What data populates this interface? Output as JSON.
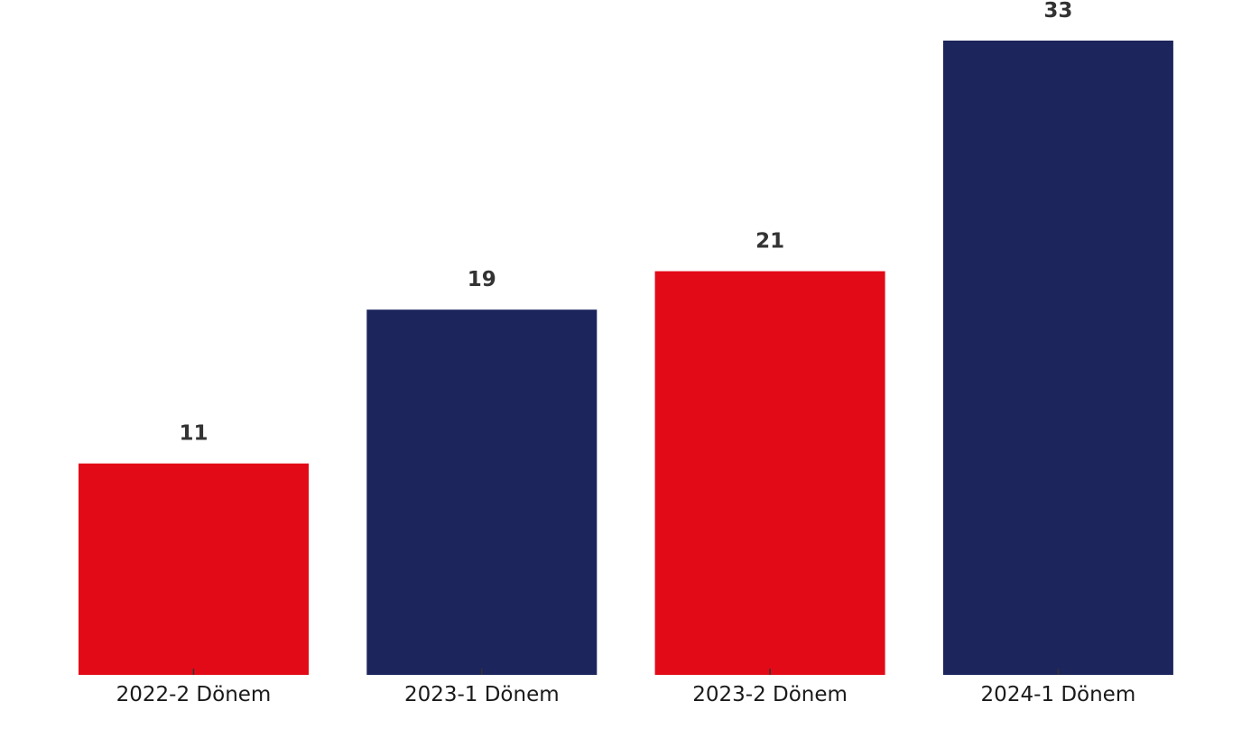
{
  "chart_data": {
    "type": "bar",
    "categories": [
      "2022-2 Dönem",
      "2023-1 Dönem",
      "2023-2 Dönem",
      "2024-1 Dönem"
    ],
    "values": [
      11,
      19,
      21,
      33
    ],
    "bar_colors": [
      "#e30a17",
      "#1c255c",
      "#e30a17",
      "#1c255c"
    ],
    "title": "",
    "xlabel": "",
    "ylabel": "",
    "ylim": [
      0,
      33
    ],
    "grid": false,
    "legend": "none",
    "data_labels": true
  }
}
